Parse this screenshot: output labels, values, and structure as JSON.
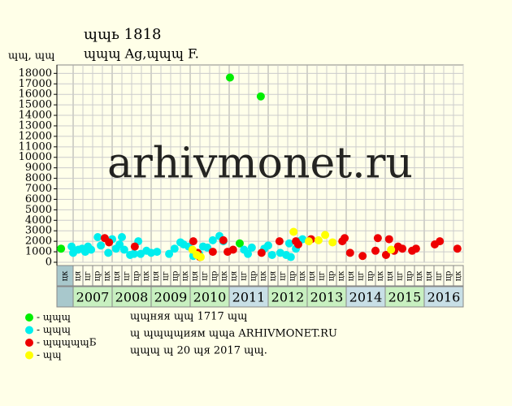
{
  "chart_data": {
    "type": "scatter",
    "title": "ɰɰь 1818",
    "subtitle": "ɰɰɰ Ag,ɰɰɰ F.",
    "ylabel": "ɰɰ, ɰɰ",
    "watermark": "arhivmonet.ru",
    "xlim": [
      2006.583,
      2017
    ],
    "xticks": [
      2007,
      2008,
      2009,
      2010,
      2011,
      2012,
      2013,
      2014,
      2015,
      2016
    ],
    "year_colors": [
      "#c8f0c0",
      "#c8f0c0",
      "#c8f0c0",
      "#c8f0c0",
      "#c8dfe6",
      "#c8f0c0",
      "#c8f0c0",
      "#c8dfe6",
      "#c8f0c0",
      "#c8dfe6"
    ],
    "quarter_labels": [
      "цк",
      "ця",
      "цг",
      "цр",
      "цк",
      "ця",
      "цг",
      "цр",
      "цк",
      "ця",
      "цг",
      "цр",
      "цк",
      "ця",
      "цг",
      "цр",
      "цк",
      "ця",
      "цг",
      "цр",
      "цк",
      "ця",
      "цг",
      "цр",
      "цк",
      "ця",
      "цг",
      "цр",
      "цк",
      "ця",
      "цг",
      "цр",
      "цк",
      "ця",
      "цг",
      "цр",
      "цк",
      "ця",
      "цг",
      "цр",
      "цк"
    ],
    "ylim": [
      0,
      18800
    ],
    "yticks": [
      0,
      1000,
      2000,
      3000,
      4000,
      5000,
      6000,
      7000,
      8000,
      9000,
      10000,
      11000,
      12000,
      13000,
      14000,
      15000,
      16000,
      17000,
      18000
    ],
    "grid": true,
    "series": [
      {
        "name": "- ɰɰɰ",
        "color": "#00ee00",
        "x": [
          2006.69,
          2011.02,
          2011.27,
          2011.81
        ],
        "values": [
          1300,
          17600,
          1800,
          15800
        ]
      },
      {
        "name": "- ɰɰɰ",
        "color": "#00eeee",
        "x": [
          2006.96,
          2007.0,
          2007.13,
          2007.23,
          2007.31,
          2007.38,
          2007.46,
          2007.63,
          2007.71,
          2007.9,
          2008.0,
          2008.1,
          2008.19,
          2008.25,
          2008.31,
          2008.46,
          2008.56,
          2008.67,
          2008.73,
          2008.88,
          2009.0,
          2009.15,
          2009.46,
          2009.6,
          2009.75,
          2009.83,
          2009.96,
          2010.08,
          2010.23,
          2010.33,
          2010.44,
          2010.58,
          2010.75,
          2010.85,
          2011.38,
          2011.48,
          2011.58,
          2011.9,
          2012.0,
          2012.1,
          2012.31,
          2012.46,
          2012.58,
          2012.54,
          2012.71,
          2012.79,
          2012.88
        ],
        "values": [
          1500,
          900,
          1200,
          1300,
          1000,
          1500,
          1200,
          2400,
          1600,
          900,
          2200,
          1300,
          1700,
          2400,
          1200,
          700,
          800,
          2000,
          800,
          1100,
          900,
          1000,
          800,
          1300,
          1900,
          1700,
          1500,
          600,
          800,
          1500,
          1400,
          2100,
          2500,
          2000,
          1200,
          800,
          1400,
          1300,
          1600,
          700,
          900,
          700,
          500,
          1800,
          1300,
          2000,
          2200
        ]
      },
      {
        "name": "- ɰɰɰɰɰБ",
        "color": "#ee0000",
        "x": [
          2007.81,
          2007.92,
          2008.58,
          2010.08,
          2010.19,
          2010.25,
          2010.58,
          2010.85,
          2010.96,
          2011.1,
          2011.83,
          2012.29,
          2012.71,
          2012.77,
          2013.1,
          2013.9,
          2013.96,
          2014.1,
          2014.42,
          2014.75,
          2014.81,
          2015.02,
          2015.1,
          2015.23,
          2015.33,
          2015.44,
          2015.69,
          2015.79,
          2016.27,
          2016.4,
          2016.85
        ],
        "values": [
          2300,
          1900,
          1500,
          2000,
          900,
          500,
          1000,
          2100,
          1000,
          1200,
          900,
          2000,
          2000,
          1700,
          2200,
          2000,
          2300,
          900,
          600,
          1100,
          2300,
          700,
          2200,
          1100,
          1500,
          1300,
          1100,
          1300,
          1700,
          2000,
          1300
        ]
      },
      {
        "name": "- ɰɰ",
        "color": "#ffff00",
        "x": [
          2010.06,
          2010.17,
          2010.27,
          2012.65,
          2013.04,
          2013.29,
          2013.46,
          2013.65,
          2015.15
        ],
        "values": [
          1200,
          700,
          500,
          2900,
          2000,
          2100,
          2600,
          1900,
          1200
        ]
      }
    ],
    "footer": [
      "ɰɰняя ɰɰ 1717 ɰɰ",
      "ɰ ɰɰɰɰиям ɰɰа ARHIVMONET.RU",
      "ɰɰɰ ɰ 20 ɰя 2017 ɰɰ."
    ]
  }
}
